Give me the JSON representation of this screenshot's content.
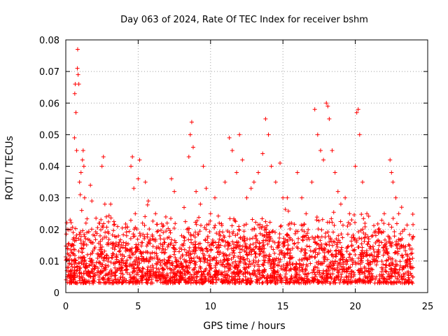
{
  "chart_data": {
    "type": "scatter",
    "title": "Day 063 of 2024, Rate Of TEC Index for receiver bshm",
    "xlabel": "GPS time / hours",
    "ylabel": "ROTI / TECUs",
    "xlim": [
      0,
      25
    ],
    "ylim": [
      0,
      0.08
    ],
    "x_ticks": [
      "0",
      "5",
      "10",
      "15",
      "20",
      "25"
    ],
    "y_ticks": [
      "0",
      "0.01",
      "0.02",
      "0.03",
      "0.04",
      "0.05",
      "0.06",
      "0.07",
      "0.08"
    ],
    "grid": true,
    "marker": "+",
    "color": "#ff0000",
    "series": [
      {
        "values_description": "dense cloud of ROTI samples across 0-24 h, bulk between 0.003 and 0.02 TECU/s",
        "points": [
          [
            0.1,
            0.008
          ],
          [
            0.2,
            0.012
          ],
          [
            0.3,
            0.023
          ],
          [
            0.35,
            0.02
          ],
          [
            0.4,
            0.006
          ],
          [
            0.5,
            0.01
          ],
          [
            0.55,
            0.015
          ],
          [
            0.6,
            0.049
          ],
          [
            0.62,
            0.063
          ],
          [
            0.65,
            0.066
          ],
          [
            0.7,
            0.057
          ],
          [
            0.75,
            0.045
          ],
          [
            0.8,
            0.071
          ],
          [
            0.82,
            0.077
          ],
          [
            0.85,
            0.069
          ],
          [
            0.9,
            0.066
          ],
          [
            0.95,
            0.035
          ],
          [
            1.0,
            0.031
          ],
          [
            1.05,
            0.038
          ],
          [
            1.1,
            0.026
          ],
          [
            1.15,
            0.042
          ],
          [
            1.2,
            0.045
          ],
          [
            1.25,
            0.04
          ],
          [
            1.3,
            0.03
          ],
          [
            1.5,
            0.012
          ],
          [
            1.7,
            0.034
          ],
          [
            1.8,
            0.029
          ],
          [
            2.0,
            0.018
          ],
          [
            2.3,
            0.022
          ],
          [
            2.5,
            0.04
          ],
          [
            2.6,
            0.043
          ],
          [
            2.7,
            0.028
          ],
          [
            2.8,
            0.024
          ],
          [
            3.1,
            0.028
          ],
          [
            3.3,
            0.015
          ],
          [
            3.8,
            0.012
          ],
          [
            4.2,
            0.018
          ],
          [
            4.5,
            0.04
          ],
          [
            4.6,
            0.043
          ],
          [
            4.7,
            0.033
          ],
          [
            4.8,
            0.025
          ],
          [
            5.0,
            0.036
          ],
          [
            5.1,
            0.042
          ],
          [
            5.3,
            0.022
          ],
          [
            5.5,
            0.035
          ],
          [
            5.7,
            0.029
          ],
          [
            6.0,
            0.017
          ],
          [
            6.2,
            0.025
          ],
          [
            6.5,
            0.018
          ],
          [
            7.0,
            0.022
          ],
          [
            7.3,
            0.036
          ],
          [
            7.5,
            0.032
          ],
          [
            8.0,
            0.018
          ],
          [
            8.5,
            0.043
          ],
          [
            8.6,
            0.05
          ],
          [
            8.7,
            0.054
          ],
          [
            8.8,
            0.046
          ],
          [
            9.0,
            0.032
          ],
          [
            9.3,
            0.028
          ],
          [
            9.5,
            0.04
          ],
          [
            9.7,
            0.033
          ],
          [
            10.0,
            0.025
          ],
          [
            10.3,
            0.03
          ],
          [
            10.6,
            0.022
          ],
          [
            11.0,
            0.035
          ],
          [
            11.3,
            0.049
          ],
          [
            11.5,
            0.045
          ],
          [
            11.8,
            0.038
          ],
          [
            12.0,
            0.05
          ],
          [
            12.2,
            0.042
          ],
          [
            12.5,
            0.03
          ],
          [
            12.8,
            0.033
          ],
          [
            13.0,
            0.035
          ],
          [
            13.3,
            0.038
          ],
          [
            13.6,
            0.044
          ],
          [
            13.8,
            0.055
          ],
          [
            14.0,
            0.05
          ],
          [
            14.2,
            0.04
          ],
          [
            14.5,
            0.035
          ],
          [
            14.8,
            0.041
          ],
          [
            15.0,
            0.03
          ],
          [
            15.3,
            0.03
          ],
          [
            15.6,
            0.022
          ],
          [
            16.0,
            0.038
          ],
          [
            16.3,
            0.03
          ],
          [
            16.6,
            0.025
          ],
          [
            17.0,
            0.035
          ],
          [
            17.2,
            0.058
          ],
          [
            17.4,
            0.05
          ],
          [
            17.6,
            0.045
          ],
          [
            17.8,
            0.042
          ],
          [
            18.0,
            0.06
          ],
          [
            18.1,
            0.059
          ],
          [
            18.2,
            0.055
          ],
          [
            18.4,
            0.045
          ],
          [
            18.6,
            0.038
          ],
          [
            18.8,
            0.032
          ],
          [
            19.0,
            0.028
          ],
          [
            19.3,
            0.03
          ],
          [
            19.6,
            0.025
          ],
          [
            20.0,
            0.04
          ],
          [
            20.1,
            0.057
          ],
          [
            20.2,
            0.058
          ],
          [
            20.3,
            0.05
          ],
          [
            20.5,
            0.035
          ],
          [
            20.8,
            0.025
          ],
          [
            21.2,
            0.018
          ],
          [
            21.6,
            0.02
          ],
          [
            22.0,
            0.025
          ],
          [
            22.4,
            0.042
          ],
          [
            22.5,
            0.038
          ],
          [
            22.6,
            0.035
          ],
          [
            22.8,
            0.03
          ],
          [
            23.0,
            0.025
          ],
          [
            23.2,
            0.027
          ],
          [
            23.4,
            0.02
          ],
          [
            23.6,
            0.012
          ],
          [
            23.9,
            0.008
          ]
        ]
      }
    ]
  }
}
